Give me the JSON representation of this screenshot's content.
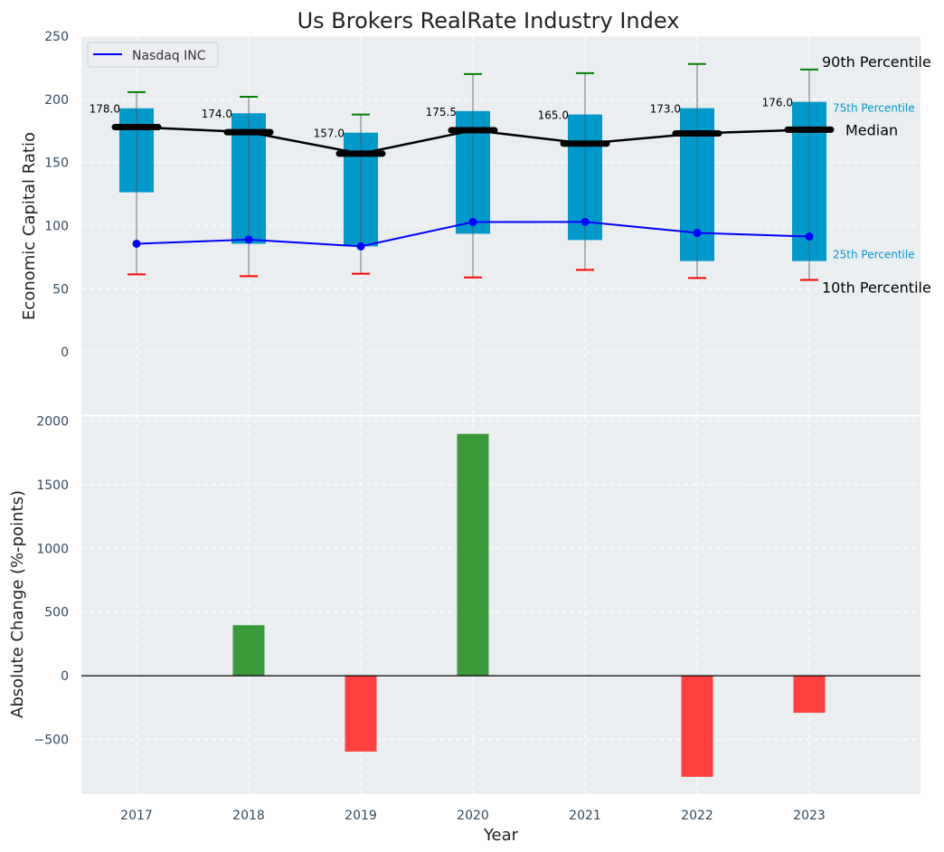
{
  "chart_data": [
    {
      "type": "box",
      "title": "Us Brokers RealRate Industry Index",
      "xlabel": "",
      "ylabel": "Economic Capital Ratio",
      "ylim": [
        -50,
        250
      ],
      "yticks": [
        0,
        50,
        100,
        150,
        200,
        250
      ],
      "grid": true,
      "categories": [
        "2017",
        "2018",
        "2019",
        "2020",
        "2021",
        "2022",
        "2023"
      ],
      "p10": [
        61.4,
        60,
        62,
        59,
        65,
        58.6,
        57
      ],
      "p25": [
        126.4,
        85.7,
        83.6,
        93.6,
        88.6,
        72,
        72
      ],
      "median": [
        178.0,
        174.0,
        157.0,
        175.5,
        165.0,
        173.0,
        176.0
      ],
      "median_labels": [
        "178.0",
        "174.0",
        "157.0",
        "175.5",
        "165.0",
        "173.0",
        "176.0"
      ],
      "p75": [
        192.9,
        189,
        173.6,
        190.7,
        188,
        193,
        198
      ],
      "p90": [
        205.7,
        202,
        188,
        220,
        220.7,
        228,
        223.6
      ],
      "series": [
        {
          "name": "Nasdaq INC",
          "values": [
            85.7,
            89,
            83.6,
            102.9,
            103,
            94.3,
            91.4
          ],
          "color": "#0000ff"
        }
      ],
      "legend": {
        "entries": [
          "Nasdaq INC"
        ],
        "placement": "top-left"
      },
      "annotations": {
        "p90": "90th Percentile",
        "p75": "75th Percentile",
        "median": "Median",
        "p25": "25th Percentile",
        "p10": "10th Percentile"
      },
      "colors": {
        "box": "#0099cc",
        "p90": "#008000",
        "p10": "#ff0000",
        "median": "#000000",
        "bg": "#eaeef0"
      }
    },
    {
      "type": "bar",
      "xlabel": "Year",
      "ylabel": "Absolute Change (%-points)",
      "ylim": [
        -930,
        2040
      ],
      "yticks": [
        -500,
        0,
        500,
        1000,
        1500,
        2000
      ],
      "ytick_labels": [
        "−500",
        "0",
        "500",
        "1000",
        "1500",
        "2000"
      ],
      "grid": true,
      "categories": [
        "2017",
        "2018",
        "2019",
        "2020",
        "2021",
        "2022",
        "2023"
      ],
      "values": [
        0,
        397,
        -596,
        1900,
        0,
        -794,
        -291
      ],
      "colors": {
        "positive": "#3a9a3a",
        "negative": "#ff4040"
      }
    }
  ]
}
